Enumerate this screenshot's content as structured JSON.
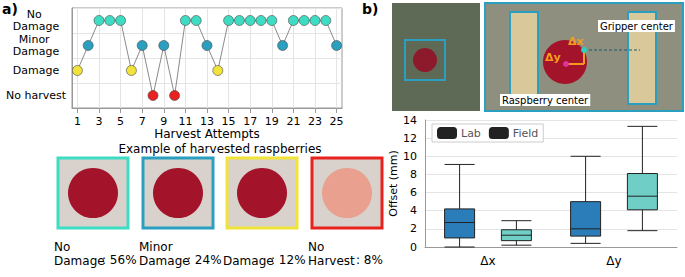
{
  "chart_data": [
    {
      "type": "line",
      "panel": "a)",
      "x": [
        1,
        2,
        3,
        4,
        5,
        6,
        7,
        8,
        9,
        10,
        11,
        12,
        13,
        14,
        15,
        16,
        17,
        18,
        19,
        20,
        21,
        22,
        23,
        24,
        25
      ],
      "values": [
        "Damage",
        "Minor Damage",
        "No Damage",
        "No Damage",
        "No Damage",
        "Damage",
        "Minor Damage",
        "No harvest",
        "Minor Damage",
        "No harvest",
        "No Damage",
        "No Damage",
        "Minor Damage",
        "Damage",
        "No Damage",
        "No Damage",
        "No Damage",
        "No Damage",
        "No Damage",
        "Minor Damage",
        "No Damage",
        "No Damage",
        "No Damage",
        "No Damage",
        "Minor Damage"
      ],
      "y_categories": [
        "No harvest",
        "Damage",
        "Minor Damage",
        "No Damage"
      ],
      "x_label": "Harvest Attempts",
      "xlim": [
        0.5,
        25.5
      ],
      "xticks": [
        1,
        3,
        5,
        7,
        9,
        11,
        13,
        15,
        17,
        19,
        21,
        23,
        25
      ],
      "color": "#8a8a8a",
      "colors": [
        "#f2e33a",
        "#2a9fbf",
        "#3fdcc4",
        "#3fdcc4",
        "#3fdcc4",
        "#f2e33a",
        "#2a9fbf",
        "#e8221e",
        "#2a9fbf",
        "#e8221e",
        "#3fdcc4",
        "#3fdcc4",
        "#2a9fbf",
        "#f2e33a",
        "#3fdcc4",
        "#3fdcc4",
        "#3fdcc4",
        "#3fdcc4",
        "#3fdcc4",
        "#2a9fbf",
        "#3fdcc4",
        "#3fdcc4",
        "#3fdcc4",
        "#3fdcc4",
        "#2a9fbf"
      ],
      "marker": "circle",
      "grid": true,
      "summary": {
        "title": "Example of harvested raspberries",
        "categories": [
          "No Damage",
          "Minor Damage",
          "Damage",
          "No Harvest"
        ],
        "values": [
          56,
          24,
          12,
          8
        ],
        "value_labels": [
          ": 56%",
          ": 24%",
          ": 12%",
          ": 8%"
        ],
        "colors": [
          "#3fdcc4",
          "#2a9fbf",
          "#f2e33a",
          "#e8221e"
        ]
      }
    },
    {
      "type": "boxplot",
      "panel": "b)",
      "categories": [
        "Δx",
        "Δy"
      ],
      "series": [
        {
          "name": "Lab",
          "color": "#2a7db8",
          "values": [
            [
              0,
              1.0,
              2.7,
              4.2,
              9.1
            ],
            [
              0.4,
              1.2,
              2.0,
              5.0,
              10.0
            ]
          ]
        },
        {
          "name": "Field",
          "color": "#6fcfc6",
          "values": [
            [
              0.2,
              0.7,
              1.3,
              1.9,
              2.9
            ],
            [
              1.8,
              4.1,
              5.6,
              8.1,
              13.3
            ]
          ]
        }
      ],
      "y_label": "Offset (mm)",
      "ylim": [
        0,
        14
      ],
      "yticks": [
        0,
        2,
        4,
        6,
        8,
        10,
        12,
        14
      ],
      "legend": "upper left",
      "grid": true,
      "photo_labels": {
        "gripper": "Gripper center",
        "raspberry": "Raspberry center",
        "dx": "Δx",
        "dy": "Δy"
      }
    }
  ]
}
